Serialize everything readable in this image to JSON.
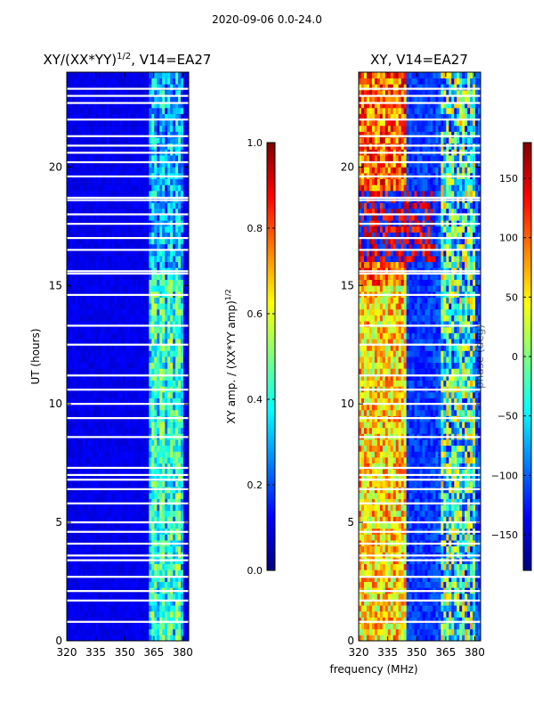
{
  "suptitle": "2020-09-06 0.0-24.0",
  "xlabel": "frequency (MHz)",
  "colors": {
    "jet": [
      "#00007f",
      "#0000ff",
      "#007fff",
      "#00ffff",
      "#7fff7f",
      "#ffff00",
      "#ff7f00",
      "#ff0000",
      "#7f0000"
    ],
    "gap": "#ffffff"
  },
  "chart_data": [
    {
      "type": "heatmap",
      "title_text": "XY/(XX*YY)",
      "title_sup": "1/2",
      "title_rest": ", V14=EA27",
      "ylabel": "UT (hours)",
      "xlim": [
        320,
        383
      ],
      "ylim": [
        0,
        24
      ],
      "xticks": [
        320,
        335,
        350,
        365,
        380
      ],
      "yticks": [
        0,
        5,
        10,
        15,
        20
      ],
      "colorbar": {
        "label": "XY amp. / (XX*YY amp)",
        "label_sup": "1/2",
        "range": [
          0.0,
          1.0
        ],
        "ticks": [
          0.0,
          0.2,
          0.4,
          0.6,
          0.8,
          1.0
        ],
        "tick_labels": [
          "0.0",
          "0.2",
          "0.4",
          "0.6",
          "0.8",
          "1.0"
        ]
      },
      "features": {
        "background_level": 0.08,
        "band_freq_range_mhz": [
          363,
          380
        ],
        "band_level": 0.45
      }
    },
    {
      "type": "heatmap",
      "title_text": "XY, V14=EA27",
      "ylabel": "phase (deg)",
      "xlim": [
        320,
        383
      ],
      "ylim": [
        0,
        24
      ],
      "xticks": [
        320,
        335,
        350,
        365,
        380
      ],
      "yticks": [
        0,
        5,
        10,
        15,
        20
      ],
      "colorbar": {
        "label": "phase (deg)",
        "range": [
          -180,
          180
        ],
        "ticks": [
          -150,
          -100,
          -50,
          0,
          50,
          100,
          150
        ],
        "tick_labels": [
          "−150",
          "−100",
          "−50",
          "0",
          "50",
          "100",
          "150"
        ]
      },
      "features": {
        "warm_freq_range_mhz": [
          320,
          345
        ],
        "cool_freq_range_mhz": [
          345,
          360
        ],
        "mixed_freq_range_mhz": [
          363,
          380
        ]
      }
    }
  ],
  "gaps_ut_hours": [
    0.8,
    1.7,
    2.1,
    2.7,
    3.4,
    3.6,
    4.1,
    4.6,
    5.0,
    5.8,
    6.4,
    6.8,
    7.0,
    7.3,
    8.6,
    9.4,
    10.0,
    10.6,
    11.2,
    12.5,
    13.3,
    14.6,
    15.5,
    15.6,
    16.5,
    17.0,
    17.6,
    18.0,
    18.6,
    18.7,
    19.6,
    20.2,
    20.6,
    20.9,
    21.3,
    22.0,
    22.7,
    23.0,
    23.3
  ]
}
